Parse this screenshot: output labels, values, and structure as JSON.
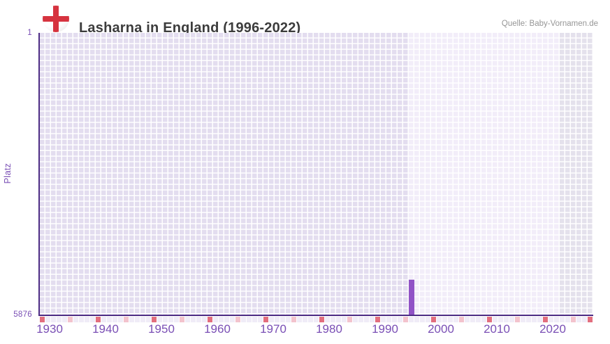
{
  "header": {
    "title": "Lasharna in England (1996-2022)",
    "source": "Quelle: Baby-Vornamen.de"
  },
  "chart_data": {
    "type": "bar",
    "title": "Lasharna in England (1996-2022)",
    "xlabel": "",
    "ylabel": "Platz",
    "y_axis": {
      "min": 1,
      "max": 5876,
      "inverted": true,
      "tick_labels": [
        "1",
        "5876"
      ]
    },
    "x_axis": {
      "start_year": 1930,
      "end_year": 2028,
      "tick_labels": [
        "1930",
        "1940",
        "1950",
        "1960",
        "1970",
        "1980",
        "1990",
        "2000",
        "2010",
        "2020"
      ],
      "major_tick_interval": 10,
      "minor_tick_interval": 5
    },
    "data_range": {
      "start": 1996,
      "end": 2022
    },
    "series": [
      {
        "name": "Platz",
        "points": [
          {
            "year": 1996,
            "rank": 5150
          }
        ]
      }
    ],
    "grid": true,
    "legend_position": "none",
    "colors": {
      "bar": "#9153c6",
      "zone_outside_range": "#e3ddef",
      "zone_data_range": "#f2edf9",
      "zone_future": "#e4e1ec",
      "axis_line": "#4e2d85",
      "major_tick": "#e26e7e",
      "minor_tick": "#f3c3cd",
      "tick_row_default": "#f0ecf7",
      "axis_text": "#7a4fb5",
      "title_text": "#3c3c3c",
      "source_text": "#969696",
      "flag_red": "#d6333f"
    }
  }
}
